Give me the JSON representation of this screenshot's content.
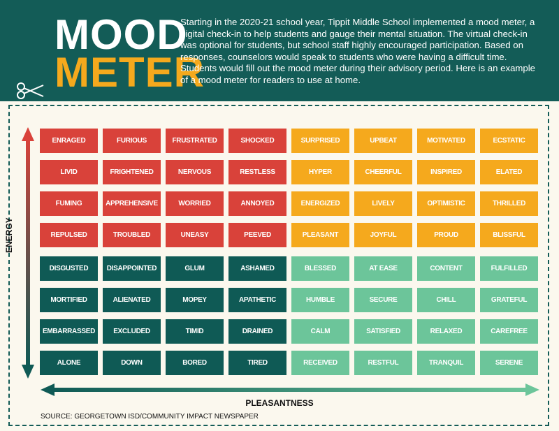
{
  "header": {
    "title_line1": "MOOD",
    "title_line2": "METER",
    "description": "Starting in the 2020-21 school year, Tippit Middle School implemented a mood meter, a digital check-in to help students and gauge their mental situation. The virtual check-in was optional for students, but school staff highly encouraged participation. Based on responses, counselors would speak to students who were having a difficult time. Students would fill out the mood meter during their advisory period. Here is an example of a mood meter for readers to use at home."
  },
  "grid": {
    "rows": [
      [
        "ENRAGED",
        "FURIOUS",
        "FRUSTRATED",
        "SHOCKED",
        "SURPRISED",
        "UPBEAT",
        "MOTIVATED",
        "ECSTATIC"
      ],
      [
        "LIVID",
        "FRIGHTENED",
        "NERVOUS",
        "RESTLESS",
        "HYPER",
        "CHEERFUL",
        "INSPIRED",
        "ELATED"
      ],
      [
        "FUMING",
        "APPREHENSIVE",
        "WORRIED",
        "ANNOYED",
        "ENERGIZED",
        "LIVELY",
        "OPTIMISTIC",
        "THRILLED"
      ],
      [
        "REPULSED",
        "TROUBLED",
        "UNEASY",
        "PEEVED",
        "PLEASANT",
        "JOYFUL",
        "PROUD",
        "BLISSFUL"
      ],
      [
        "DISGUSTED",
        "DISAPPOINTED",
        "GLUM",
        "ASHAMED",
        "BLESSED",
        "AT EASE",
        "CONTENT",
        "FULFILLED"
      ],
      [
        "MORTIFIED",
        "ALIENATED",
        "MOPEY",
        "APATHETIC",
        "HUMBLE",
        "SECURE",
        "CHILL",
        "GRATEFUL"
      ],
      [
        "EMBARRASSED",
        "EXCLUDED",
        "TIMID",
        "DRAINED",
        "CALM",
        "SATISFIED",
        "RELAXED",
        "CAREFREE"
      ],
      [
        "ALONE",
        "DOWN",
        "BORED",
        "TIRED",
        "RECEIVED",
        "RESTFUL",
        "TRANQUIL",
        "SERENE"
      ]
    ]
  },
  "axes": {
    "y_label": "ENERGY",
    "x_label": "PLEASANTNESS"
  },
  "source": "SOURCE: GEORGETOWN ISD/COMMUNITY IMPACT NEWSPAPER"
}
